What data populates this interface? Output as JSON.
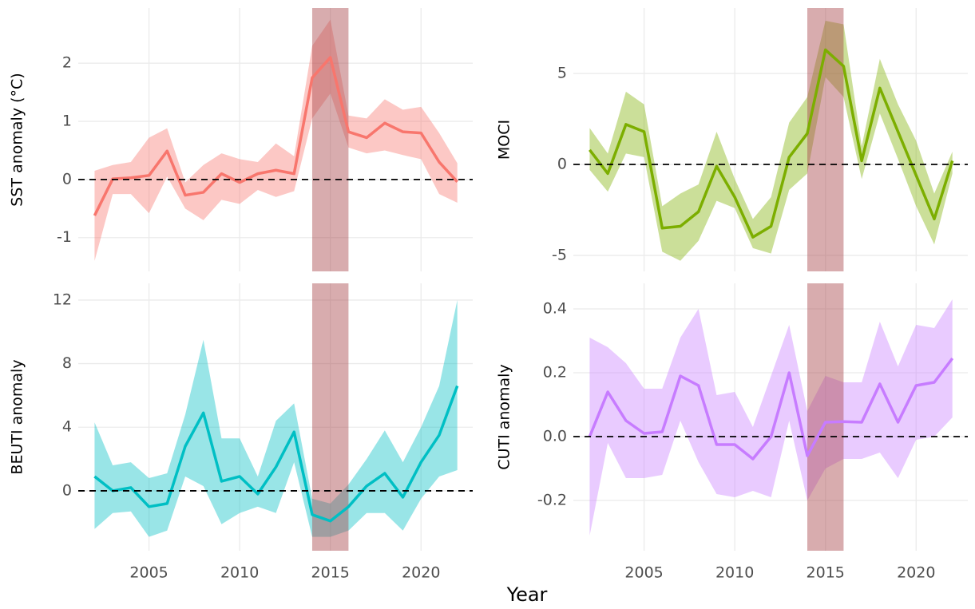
{
  "shared_x_label": "Year",
  "chart_data": [
    {
      "type": "line",
      "y_label": "SST anomaly (°C)",
      "xlim": [
        2001.1,
        2022.85
      ],
      "ylim": [
        -1.58,
        2.95
      ],
      "xticks": [
        2005,
        2010,
        2015,
        2020
      ],
      "yticks": [
        -1,
        0,
        1,
        2
      ],
      "grid": true,
      "highlight": [
        2014,
        2016
      ],
      "reference_line": 0,
      "x": [
        2002,
        2003,
        2004,
        2005,
        2006,
        2007,
        2008,
        2009,
        2010,
        2011,
        2012,
        2013,
        2014,
        2015,
        2016,
        2017,
        2018,
        2019,
        2020,
        2021,
        2022
      ],
      "series": [
        {
          "color": "#f8766d",
          "values": [
            -0.62,
            0.01,
            0.03,
            0.07,
            0.49,
            -0.27,
            -0.22,
            0.1,
            -0.05,
            0.1,
            0.16,
            0.1,
            1.75,
            2.1,
            0.82,
            0.72,
            0.97,
            0.82,
            0.8,
            0.3,
            -0.04
          ],
          "lower": [
            -1.4,
            -0.25,
            -0.25,
            -0.58,
            0.05,
            -0.5,
            -0.7,
            -0.35,
            -0.42,
            -0.18,
            -0.3,
            -0.2,
            1.05,
            1.48,
            0.55,
            0.45,
            0.5,
            0.42,
            0.35,
            -0.25,
            -0.4
          ],
          "upper": [
            0.15,
            0.25,
            0.3,
            0.72,
            0.88,
            -0.05,
            0.25,
            0.45,
            0.35,
            0.3,
            0.62,
            0.4,
            2.3,
            2.75,
            1.1,
            1.05,
            1.38,
            1.2,
            1.25,
            0.8,
            0.28
          ]
        }
      ]
    },
    {
      "type": "line",
      "y_label": "MOCI",
      "xlim": [
        2001.1,
        2022.85
      ],
      "ylim": [
        -5.88,
        8.6
      ],
      "xticks": [
        2005,
        2010,
        2015,
        2020
      ],
      "yticks": [
        -5,
        0,
        5
      ],
      "grid": true,
      "highlight": [
        2014,
        2016
      ],
      "reference_line": 0,
      "x": [
        2002,
        2003,
        2004,
        2005,
        2006,
        2007,
        2008,
        2009,
        2010,
        2011,
        2012,
        2013,
        2014,
        2015,
        2016,
        2017,
        2018,
        2019,
        2020,
        2021,
        2022
      ],
      "series": [
        {
          "color": "#7cae00",
          "values": [
            0.8,
            -0.5,
            2.2,
            1.8,
            -3.5,
            -3.4,
            -2.6,
            -0.1,
            -1.8,
            -4.0,
            -3.4,
            0.4,
            1.7,
            6.3,
            5.4,
            0.2,
            4.2,
            1.8,
            -0.6,
            -3.0,
            0.2
          ],
          "lower": [
            -0.3,
            -1.5,
            0.6,
            0.4,
            -4.8,
            -5.3,
            -4.2,
            -2.0,
            -2.4,
            -4.6,
            -4.9,
            -1.4,
            -0.5,
            4.8,
            3.7,
            -0.8,
            2.8,
            0.3,
            -2.3,
            -4.4,
            -0.5
          ],
          "upper": [
            2.0,
            0.6,
            4.0,
            3.3,
            -2.3,
            -1.6,
            -1.1,
            1.8,
            -0.8,
            -3.0,
            -1.8,
            2.3,
            3.7,
            7.9,
            7.7,
            1.0,
            5.8,
            3.3,
            1.3,
            -1.6,
            0.7
          ]
        }
      ]
    },
    {
      "type": "line",
      "y_label": "BEUTI anomaly",
      "xlim": [
        2001.1,
        2022.85
      ],
      "ylim": [
        -3.77,
        13.05
      ],
      "xticks": [
        2005,
        2010,
        2015,
        2020
      ],
      "yticks": [
        0,
        4,
        8,
        12
      ],
      "grid": true,
      "highlight": [
        2014,
        2016
      ],
      "reference_line": 0,
      "x": [
        2002,
        2003,
        2004,
        2005,
        2006,
        2007,
        2008,
        2009,
        2010,
        2011,
        2012,
        2013,
        2014,
        2015,
        2016,
        2017,
        2018,
        2019,
        2020,
        2021,
        2022
      ],
      "series": [
        {
          "color": "#00bfc4",
          "values": [
            0.9,
            0.0,
            0.2,
            -1.0,
            -0.8,
            2.8,
            4.9,
            0.6,
            0.9,
            -0.2,
            1.5,
            3.7,
            -1.5,
            -1.9,
            -1.0,
            0.3,
            1.1,
            -0.4,
            1.8,
            3.5,
            6.6
          ],
          "lower": [
            -2.4,
            -1.4,
            -1.3,
            -2.9,
            -2.5,
            0.9,
            0.3,
            -2.1,
            -1.4,
            -1.0,
            -1.4,
            1.8,
            -2.9,
            -2.9,
            -2.5,
            -1.4,
            -1.4,
            -2.5,
            -0.5,
            0.9,
            1.3
          ],
          "upper": [
            4.3,
            1.6,
            1.8,
            0.8,
            1.1,
            4.8,
            9.5,
            3.3,
            3.3,
            0.9,
            4.4,
            5.5,
            -0.5,
            -0.8,
            0.4,
            2.0,
            3.8,
            1.8,
            4.0,
            6.6,
            12.0
          ]
        }
      ]
    },
    {
      "type": "line",
      "y_label": "CUTI anomaly",
      "xlim": [
        2001.1,
        2022.85
      ],
      "ylim": [
        -0.3575,
        0.48
      ],
      "xticks": [
        2005,
        2010,
        2015,
        2020
      ],
      "yticks": [
        -0.2,
        {
          "value": 0,
          "label": "0.0"
        },
        0.2,
        0.4
      ],
      "grid": true,
      "highlight": [
        2014,
        2016
      ],
      "reference_line": 0,
      "x": [
        2002,
        2003,
        2004,
        2005,
        2006,
        2007,
        2008,
        2009,
        2010,
        2011,
        2012,
        2013,
        2014,
        2015,
        2016,
        2017,
        2018,
        2019,
        2020,
        2021,
        2022
      ],
      "series": [
        {
          "color": "#c77cff",
          "values": [
            0.0,
            0.14,
            0.05,
            0.01,
            0.015,
            0.19,
            0.16,
            -0.025,
            -0.025,
            -0.07,
            0.0,
            0.2,
            -0.06,
            0.045,
            0.047,
            0.045,
            0.165,
            0.045,
            0.16,
            0.17,
            0.245
          ],
          "lower": [
            -0.31,
            -0.02,
            -0.13,
            -0.13,
            -0.12,
            0.05,
            -0.08,
            -0.18,
            -0.19,
            -0.17,
            -0.19,
            0.05,
            -0.2,
            -0.1,
            -0.07,
            -0.07,
            -0.05,
            -0.13,
            -0.01,
            0.0,
            0.06
          ],
          "upper": [
            0.31,
            0.28,
            0.23,
            0.15,
            0.15,
            0.31,
            0.4,
            0.13,
            0.14,
            0.03,
            0.19,
            0.35,
            0.08,
            0.19,
            0.17,
            0.17,
            0.36,
            0.22,
            0.35,
            0.34,
            0.43
          ]
        }
      ]
    }
  ]
}
